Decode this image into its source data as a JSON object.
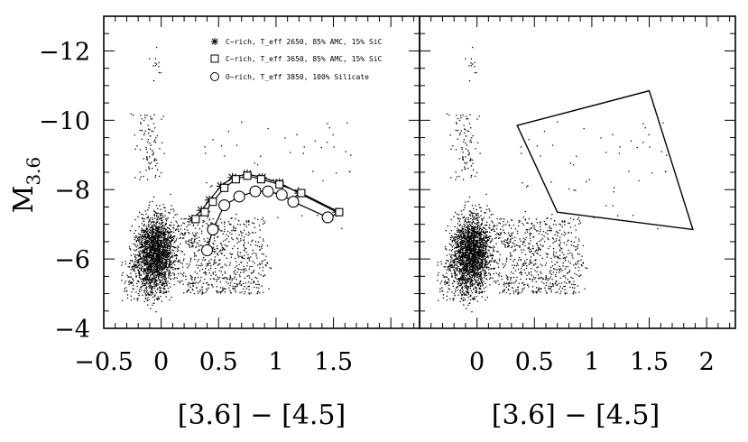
{
  "chart_data": [
    {
      "type": "scatter",
      "panel": "left",
      "xlabel": "[3.6] − [4.5]",
      "ylabel": "M",
      "ylabel_sub": "3.6",
      "xlim": [
        -0.5,
        2.25
      ],
      "ylim": [
        -4,
        -13
      ],
      "x_ticks": [
        -0.5,
        0,
        0.5,
        1,
        1.5
      ],
      "x_tick_labels": [
        "−0.5",
        "0",
        "0.5",
        "1",
        "1.5"
      ],
      "y_ticks": [
        -4,
        -6,
        -8,
        -10,
        -12
      ],
      "y_tick_labels": [
        "−4",
        "−6",
        "−8",
        "−10",
        "−12"
      ],
      "legend": [
        {
          "marker": "asterisk",
          "label": "C−rich, T_eff 2650, 85% AMC, 15% SiC"
        },
        {
          "marker": "square",
          "label": "C−rich, T_eff 3650, 85% AMC, 15% SiC"
        },
        {
          "marker": "circle",
          "label": "O−rich, T_eff 3850, 100% Silicate"
        }
      ],
      "series": [
        {
          "marker": "asterisk",
          "x": [
            0.27,
            0.35,
            0.42,
            0.52,
            0.62,
            0.75,
            0.88,
            1.03,
            1.2,
            1.53
          ],
          "y": [
            -7.15,
            -7.4,
            -7.7,
            -8.1,
            -8.35,
            -8.45,
            -8.35,
            -8.2,
            -7.9,
            -7.35
          ]
        },
        {
          "marker": "square",
          "x": [
            0.3,
            0.38,
            0.45,
            0.55,
            0.65,
            0.75,
            0.87,
            1.03,
            1.22,
            1.55
          ],
          "y": [
            -7.15,
            -7.35,
            -7.65,
            -8.05,
            -8.3,
            -8.4,
            -8.3,
            -8.15,
            -7.9,
            -7.35
          ]
        },
        {
          "marker": "circle",
          "x": [
            0.4,
            0.45,
            0.55,
            0.68,
            0.82,
            0.93,
            1.05,
            1.15,
            1.45
          ],
          "y": [
            -6.25,
            -6.85,
            -7.55,
            -7.8,
            -7.95,
            -7.95,
            -7.85,
            -7.65,
            -7.2
          ]
        }
      ],
      "points_description": "dense field population concentrated near [3.6]-[4.5] ≈ 0, M_3.6 -5 to -8"
    },
    {
      "type": "scatter",
      "panel": "right",
      "xlabel": "[3.6] − [4.5]",
      "xlim": [
        -0.5,
        2.25
      ],
      "ylim": [
        -4,
        -13
      ],
      "x_ticks": [
        0,
        0.5,
        1,
        1.5,
        2
      ],
      "x_tick_labels": [
        "0",
        "0.5",
        "1",
        "1.5",
        "2"
      ],
      "selection_polygon": [
        [
          0.35,
          -9.85
        ],
        [
          1.5,
          -10.85
        ],
        [
          1.88,
          -6.85
        ],
        [
          0.7,
          -7.35
        ]
      ]
    }
  ]
}
